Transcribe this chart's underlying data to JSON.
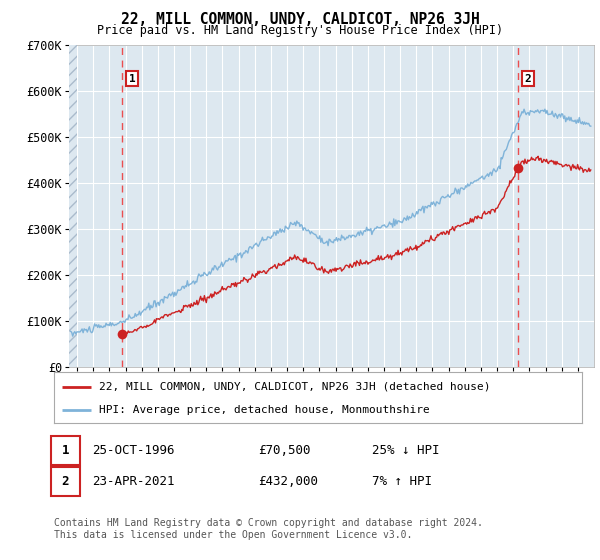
{
  "title": "22, MILL COMMON, UNDY, CALDICOT, NP26 3JH",
  "subtitle": "Price paid vs. HM Land Registry's House Price Index (HPI)",
  "ylim": [
    0,
    700000
  ],
  "yticks": [
    0,
    100000,
    200000,
    300000,
    400000,
    500000,
    600000,
    700000
  ],
  "ytick_labels": [
    "£0",
    "£100K",
    "£200K",
    "£300K",
    "£400K",
    "£500K",
    "£600K",
    "£700K"
  ],
  "sale1": {
    "date_num": 1996.81,
    "price": 70500,
    "label": "1",
    "date_str": "25-OCT-1996",
    "price_str": "£70,500",
    "hpi_str": "25% ↓ HPI"
  },
  "sale2": {
    "date_num": 2021.31,
    "price": 432000,
    "label": "2",
    "date_str": "23-APR-2021",
    "price_str": "£432,000",
    "hpi_str": "7% ↑ HPI"
  },
  "xlim": [
    1993.5,
    2026.0
  ],
  "xticks": [
    1994,
    1995,
    1996,
    1997,
    1998,
    1999,
    2000,
    2001,
    2002,
    2003,
    2004,
    2005,
    2006,
    2007,
    2008,
    2009,
    2010,
    2011,
    2012,
    2013,
    2014,
    2015,
    2016,
    2017,
    2018,
    2019,
    2020,
    2021,
    2022,
    2023,
    2024,
    2025
  ],
  "legend1": "22, MILL COMMON, UNDY, CALDICOT, NP26 3JH (detached house)",
  "legend2": "HPI: Average price, detached house, Monmouthshire",
  "footer": "Contains HM Land Registry data © Crown copyright and database right 2024.\nThis data is licensed under the Open Government Licence v3.0.",
  "hpi_color": "#7fb3d9",
  "price_color": "#cc2222",
  "dashed_color": "#ee3333",
  "chart_bg": "#dde8f0",
  "background_color": "#ffffff",
  "grid_color": "#ffffff"
}
